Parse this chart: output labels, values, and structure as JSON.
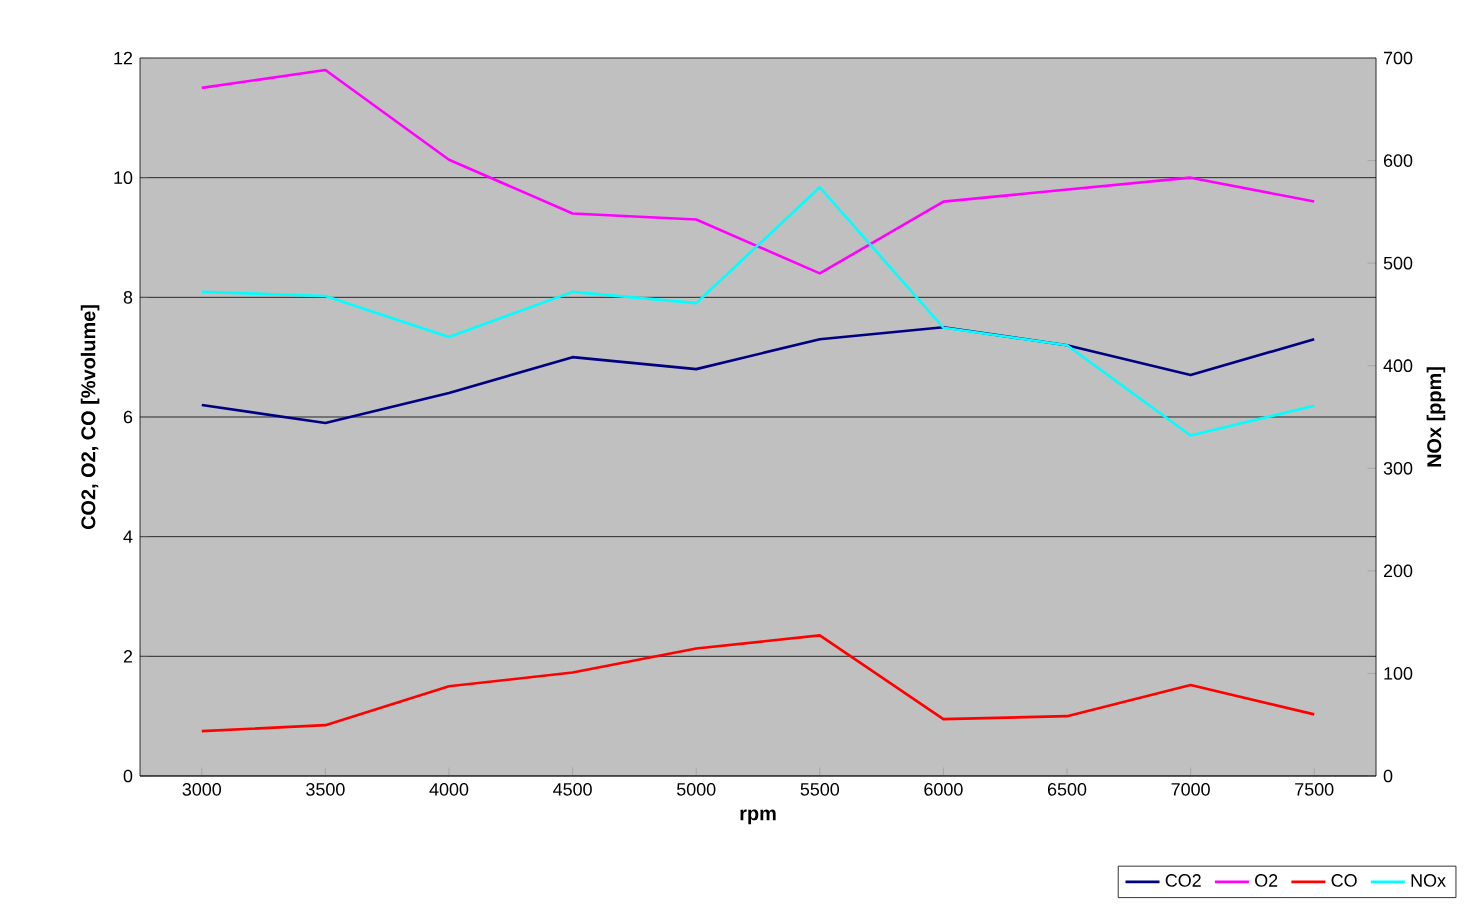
{
  "chart_data": {
    "type": "line",
    "xlabel": "rpm",
    "ylabel": "CO2, O2, CO [%volume]",
    "y2label": "NOx [ppm]",
    "categories": [
      "3000",
      "3500",
      "4000",
      "4500",
      "5000",
      "5500",
      "6000",
      "6500",
      "7000",
      "7500"
    ],
    "series": [
      {
        "name": "CO2",
        "color": "#000080",
        "values": [
          6.2,
          5.9,
          6.4,
          7.0,
          6.8,
          7.3,
          7.5,
          7.2,
          6.7,
          7.3
        ]
      },
      {
        "name": "O2",
        "color": "#ff00ff",
        "values": [
          11.5,
          11.8,
          10.3,
          9.4,
          9.3,
          8.4,
          9.6,
          9.8,
          10.0,
          9.6
        ]
      },
      {
        "name": "CO",
        "color": "#ff0000",
        "values": [
          0.75,
          0.85,
          1.5,
          1.73,
          2.13,
          2.35,
          0.95,
          1.0,
          1.52,
          1.03
        ]
      },
      {
        "name": "NOx",
        "color": "#00ffff",
        "axis": "y2",
        "values": [
          472,
          468,
          428,
          472,
          461,
          574,
          437,
          420,
          332,
          361
        ]
      }
    ],
    "ylim": [
      0,
      12
    ],
    "yticks": [
      0,
      2,
      4,
      6,
      8,
      10,
      12
    ],
    "y2lim": [
      0,
      700
    ],
    "y2ticks": [
      0,
      100,
      200,
      300,
      400,
      500,
      600,
      700
    ],
    "grid": "y",
    "legend": "bottom right",
    "marker": "none",
    "line_style": "solid"
  }
}
